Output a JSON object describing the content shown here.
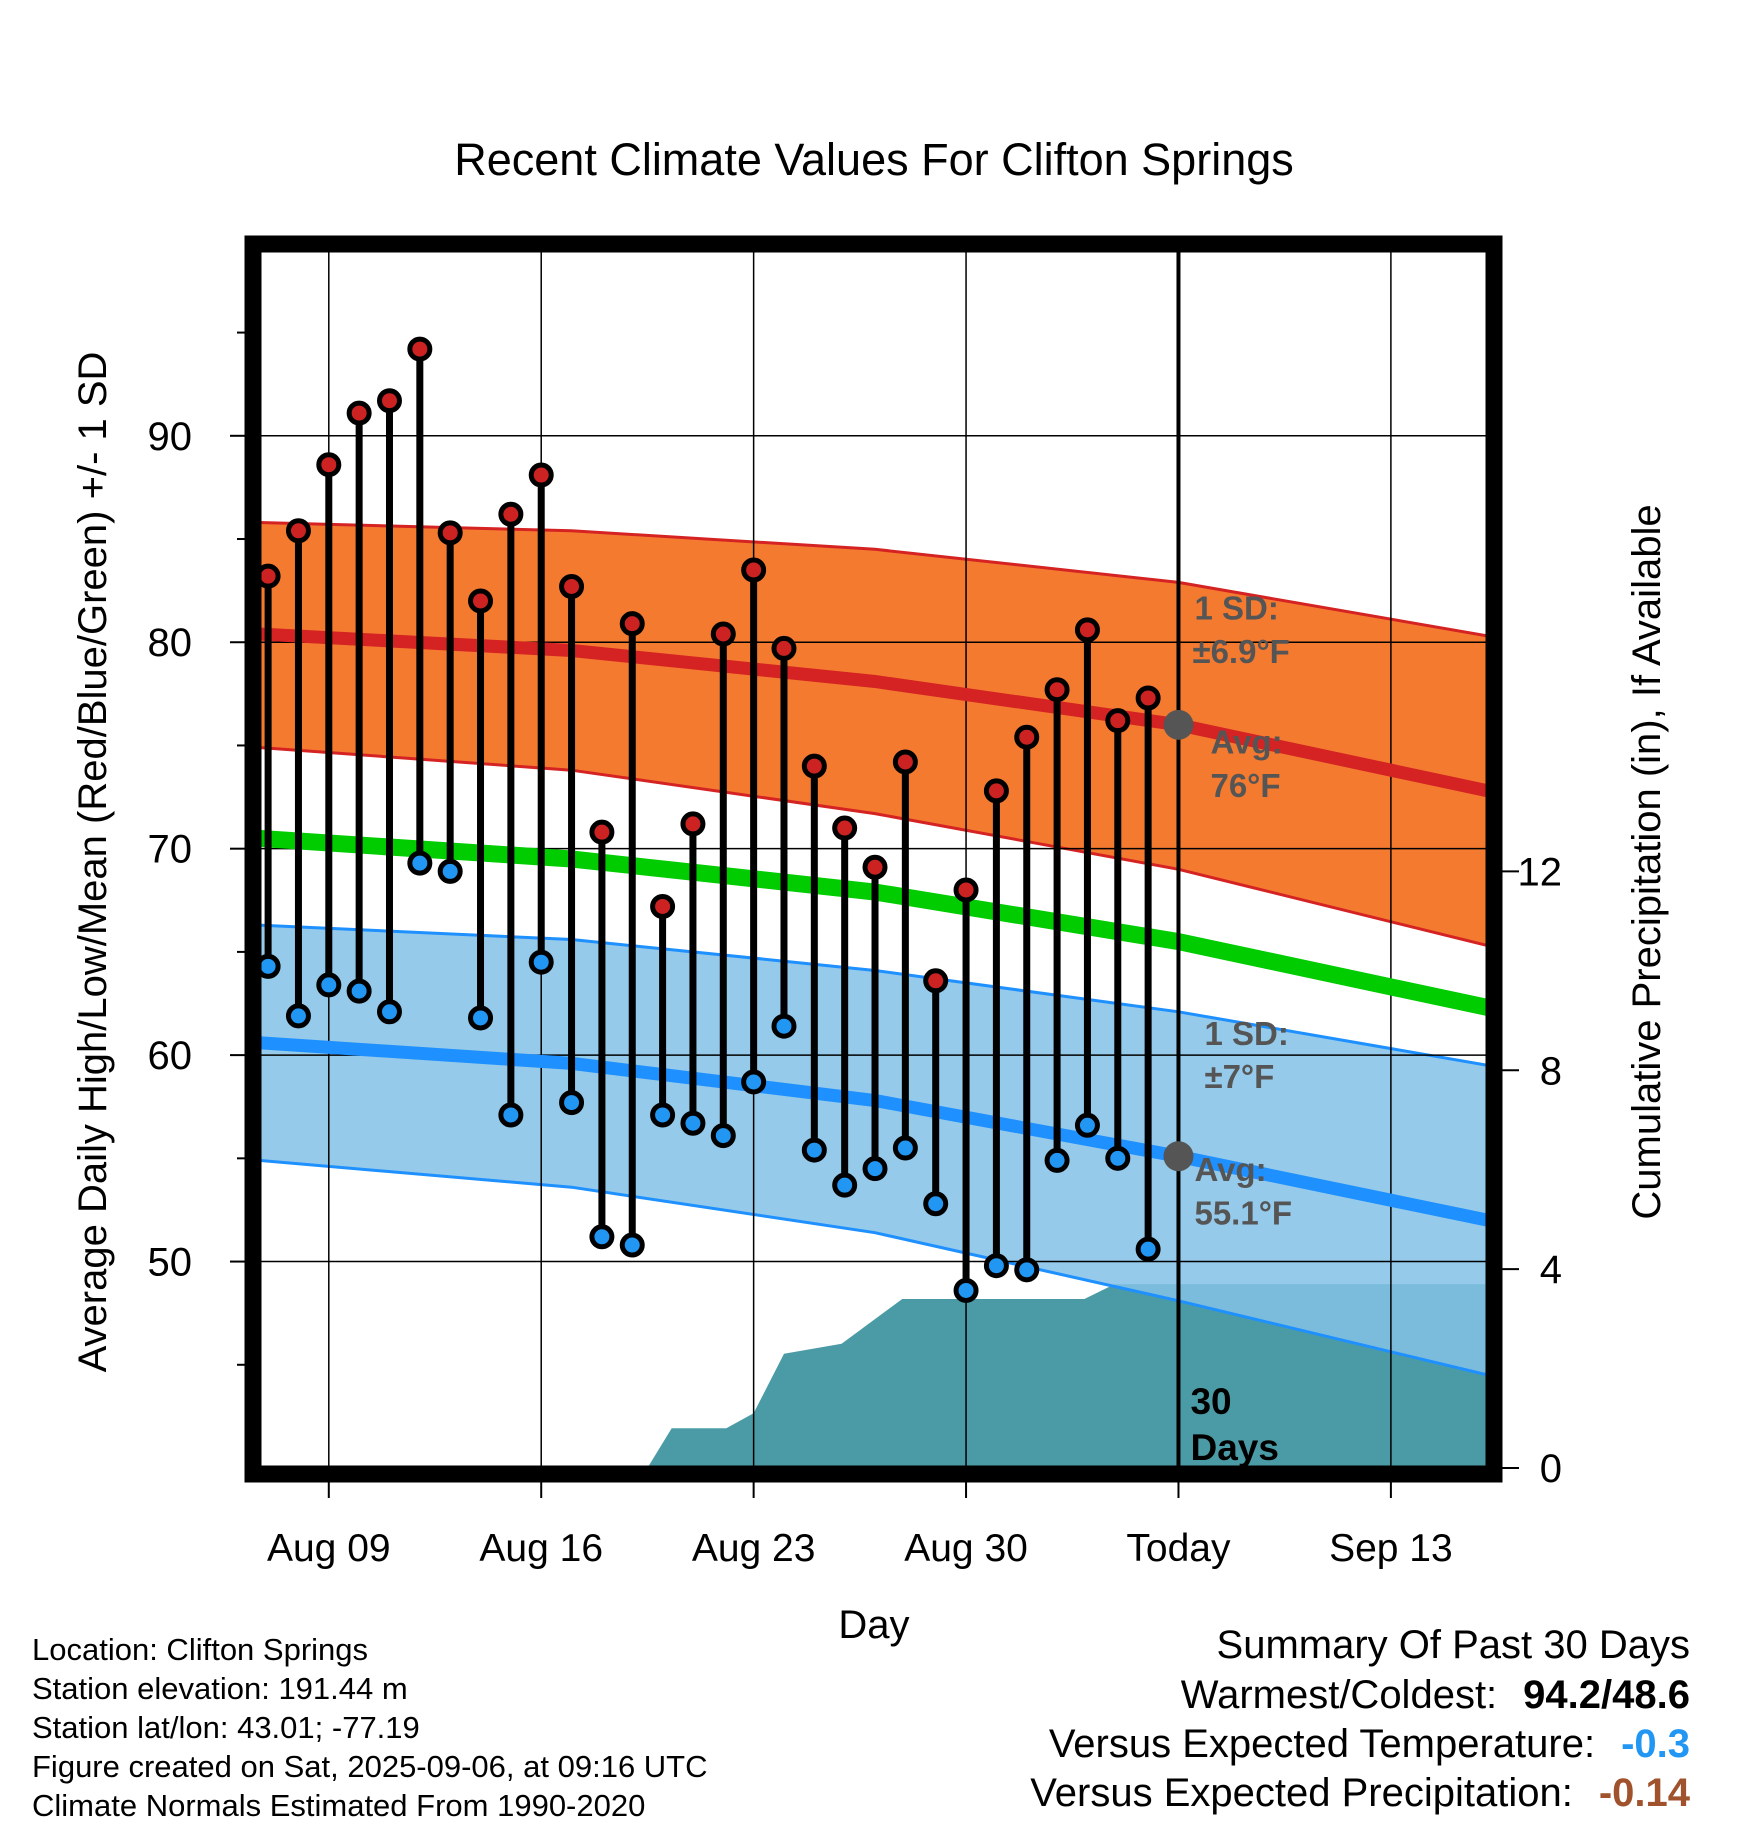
{
  "chart_data": {
    "type": "line",
    "title": "Recent Climate Values For Clifton Springs",
    "xlabel": "Day",
    "ylabel": "Average Daily High/Low/Mean (Red/Blue/Green) +/- 1 SD",
    "y2label": "Cumulative Precipitation (in), If Available",
    "x_range": [
      -2.3,
      38.2
    ],
    "ylim": [
      40,
      99
    ],
    "y2lim": [
      0,
      24.5
    ],
    "grid": true,
    "x_ticks": [
      {
        "x": 0,
        "label": "Aug 09"
      },
      {
        "x": 7,
        "label": "Aug 16"
      },
      {
        "x": 14,
        "label": "Aug 23"
      },
      {
        "x": 21,
        "label": "Aug 30"
      },
      {
        "x": 28,
        "label": "Today"
      },
      {
        "x": 35,
        "label": "Sep 13"
      }
    ],
    "y_ticks": [
      50,
      60,
      70,
      80,
      90
    ],
    "y_minor_ticks": [
      45,
      55,
      65,
      75,
      85,
      95
    ],
    "y2_ticks": [
      0,
      4,
      8,
      12
    ],
    "today_x": 28,
    "window_label": "30\nDays",
    "high_band": {
      "x": [
        -2.3,
        8,
        18,
        28,
        38.2
      ],
      "mean": [
        80.4,
        79.6,
        78.1,
        76.0,
        72.8
      ],
      "upper": [
        85.8,
        85.4,
        84.5,
        82.9,
        80.3
      ],
      "lower": [
        74.9,
        73.8,
        71.7,
        69.0,
        65.3
      ]
    },
    "low_band": {
      "x": [
        -2.3,
        8,
        18,
        28,
        38.2
      ],
      "mean": [
        60.6,
        59.6,
        57.8,
        55.1,
        52.0
      ],
      "upper": [
        66.3,
        65.6,
        64.1,
        62.1,
        59.5
      ],
      "lower": [
        54.9,
        53.6,
        51.4,
        48.1,
        44.5
      ]
    },
    "mean_normal": {
      "x": [
        -2.3,
        8,
        18,
        28,
        38.2
      ],
      "values": [
        70.5,
        69.5,
        67.9,
        65.5,
        62.3
      ]
    },
    "high_annotation": {
      "sd": "1 SD:",
      "sd_value": "±6.9°F",
      "avg": "Avg:",
      "avg_value": "76°F",
      "marker_value": 76.0
    },
    "low_annotation": {
      "sd": "1 SD:",
      "sd_value": "±7°F",
      "avg": "Avg:",
      "avg_value": "55.1°F",
      "marker_value": 55.1
    },
    "daily": {
      "days": [
        -2,
        -1,
        0,
        1,
        2,
        3,
        4,
        5,
        6,
        7,
        8,
        9,
        10,
        11,
        12,
        13,
        14,
        15,
        16,
        17,
        18,
        19,
        20,
        21,
        22,
        23,
        24,
        25,
        26,
        27
      ],
      "highs": [
        83.2,
        85.4,
        88.6,
        91.1,
        91.7,
        94.2,
        85.3,
        82.0,
        86.2,
        88.1,
        82.7,
        70.8,
        80.9,
        67.2,
        71.2,
        80.4,
        83.5,
        79.7,
        74.0,
        71.0,
        69.1,
        74.2,
        63.6,
        68.0,
        72.8,
        75.4,
        77.7,
        80.6,
        76.2,
        77.3
      ],
      "lows": [
        64.3,
        61.9,
        63.4,
        63.1,
        62.1,
        69.3,
        68.9,
        61.8,
        57.1,
        64.5,
        57.7,
        51.2,
        50.8,
        57.1,
        56.7,
        56.1,
        58.7,
        61.4,
        55.4,
        53.7,
        54.5,
        55.5,
        52.8,
        48.6,
        49.8,
        49.6,
        54.9,
        56.6,
        55.0,
        50.6
      ]
    },
    "precip": {
      "x": [
        10.5,
        11.3,
        13.1,
        14.0,
        15.0,
        16.9,
        18.9,
        21.0,
        24.9,
        25.9,
        38.2
      ],
      "values": [
        0.0,
        0.8,
        0.8,
        1.1,
        2.3,
        2.5,
        3.4,
        3.4,
        3.4,
        3.7,
        3.7
      ]
    },
    "colors": {
      "high_band": "#f47a30",
      "high_line": "#d42322",
      "low_band": "#84c1e6",
      "low_line": "#1e90ff",
      "mean_line": "#00cc00",
      "precip": "#4a9ba5",
      "high_marker": "#cc2222",
      "low_marker": "#2196f3",
      "annotation": "#555555"
    }
  },
  "info": {
    "location": "Location: Clifton Springs",
    "elevation": "Station elevation: 191.44 m",
    "latlon": "Station lat/lon: 43.01; -77.19",
    "created": "Figure created on Sat, 2025-09-06, at 09:16 UTC",
    "normals": "Climate Normals Estimated From 1990-2020"
  },
  "summary": {
    "heading": "Summary Of Past 30 Days",
    "warm_cold_label": "Warmest/Coldest:",
    "warm_cold_value": "94.2/48.6",
    "temp_label": "Versus Expected Temperature:",
    "temp_value": "-0.3",
    "temp_color": "#2196f3",
    "precip_label": "Versus Expected Precipitation:",
    "precip_value": "-0.14",
    "precip_color": "#a0522d"
  }
}
